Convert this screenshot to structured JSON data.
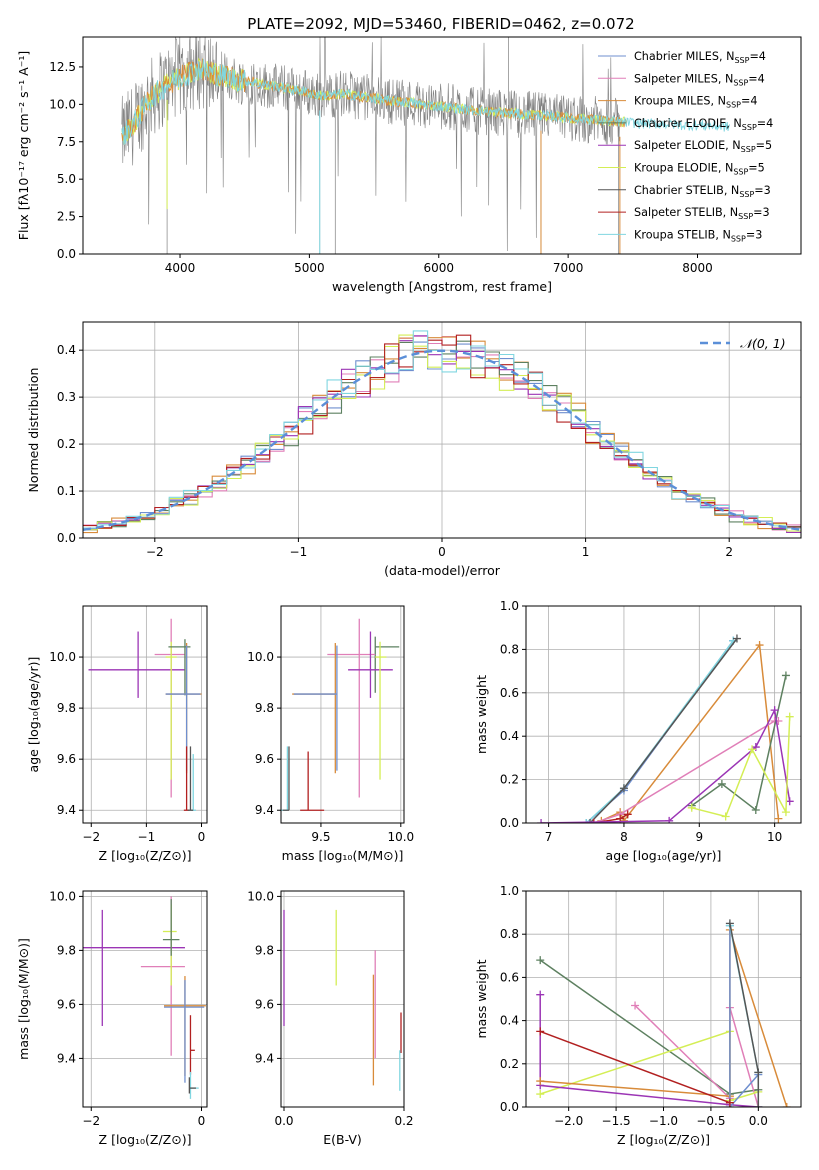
{
  "figure": {
    "title": "PLATE=2092, MJD=53460, FIBERID=0462, z=0.072"
  },
  "colors": {
    "Chabrier MILES": "#6f8fcf",
    "Salpeter MILES": "#e07fb8",
    "Kroupa MILES": "#d88b3a",
    "Chabrier ELODIE": "#5d8060",
    "Salpeter ELODIE": "#9b35b5",
    "Kroupa ELODIE": "#d4ee55",
    "Chabrier STELIB": "#555555",
    "Salpeter STELIB": "#b22020",
    "Kroupa STELIB": "#80d6e0",
    "spectrum": "#808080",
    "normal_curve": "#5b8fd8"
  },
  "chart_data": [
    {
      "id": "spectrum",
      "type": "line",
      "title": "PLATE=2092, MJD=53460, FIBERID=0462, z=0.072",
      "xlabel": "wavelength [Angstrom, rest frame]",
      "ylabel": "Flux [fλ10⁻¹⁷ erg cm⁻² s⁻¹ A⁻¹]",
      "xlim": [
        3250,
        8800
      ],
      "ylim": [
        0,
        14.5
      ],
      "xticks": [
        4000,
        5000,
        6000,
        7000,
        8000
      ],
      "yticks": [
        0.0,
        2.5,
        5.0,
        7.5,
        10.0,
        12.5
      ],
      "grid": false,
      "legend": "top-right",
      "series": [
        {
          "name": "Chabrier MILES, N_SSP=4",
          "label_main": "Chabrier MILES, N",
          "label_sub": "SSP",
          "label_tail": "=4"
        },
        {
          "name": "Salpeter MILES, N_SSP=4",
          "label_main": "Salpeter MILES, N",
          "label_sub": "SSP",
          "label_tail": "=4"
        },
        {
          "name": "Kroupa MILES, N_SSP=4",
          "label_main": "Kroupa MILES, N",
          "label_sub": "SSP",
          "label_tail": "=4"
        },
        {
          "name": "Chabrier ELODIE, N_SSP=4",
          "label_main": "Chabrier ELODIE, N",
          "label_sub": "SSP",
          "label_tail": "=4"
        },
        {
          "name": "Salpeter ELODIE, N_SSP=5",
          "label_main": "Salpeter ELODIE, N",
          "label_sub": "SSP",
          "label_tail": "=5"
        },
        {
          "name": "Kroupa ELODIE, N_SSP=5",
          "label_main": "Kroupa ELODIE, N",
          "label_sub": "SSP",
          "label_tail": "=5"
        },
        {
          "name": "Chabrier STELIB, N_SSP=3",
          "label_main": "Chabrier STELIB, N",
          "label_sub": "SSP",
          "label_tail": "=3"
        },
        {
          "name": "Salpeter STELIB, N_SSP=3",
          "label_main": "Salpeter STELIB, N",
          "label_sub": "SSP",
          "label_tail": "=3"
        },
        {
          "name": "Kroupa STELIB, N_SSP=3",
          "label_main": "Kroupa STELIB, N",
          "label_sub": "SSP",
          "label_tail": "=3"
        }
      ],
      "model_curve": {
        "x": [
          3550,
          3650,
          3750,
          3850,
          3950,
          4050,
          4150,
          4250,
          4350,
          4450,
          4550,
          4650,
          4750,
          4850,
          4950,
          5050,
          5150,
          5250,
          5350,
          5500,
          5650,
          5800,
          5950,
          6100,
          6250,
          6400,
          6550,
          6700,
          6850,
          7000,
          7150,
          7300,
          7450,
          7600,
          7750,
          7900,
          8050,
          8200,
          8350
        ],
        "y": [
          7.8,
          8.8,
          10.2,
          11.0,
          11.6,
          12.0,
          12.4,
          12.1,
          11.9,
          11.6,
          11.5,
          11.3,
          11.2,
          11.0,
          10.9,
          10.6,
          10.6,
          10.7,
          10.6,
          10.4,
          10.2,
          10.1,
          9.9,
          9.8,
          9.6,
          9.5,
          9.4,
          9.3,
          9.2,
          9.1,
          9.0,
          8.9,
          8.8,
          8.7,
          8.7,
          8.6,
          8.6,
          8.5,
          8.5
        ]
      }
    },
    {
      "id": "residuals",
      "type": "histogram",
      "xlabel": "(data-model)/error",
      "ylabel": "Normed distribution",
      "xlim": [
        -2.5,
        2.5
      ],
      "ylim": [
        0,
        0.46
      ],
      "xticks": [
        -2,
        -1,
        0,
        1,
        2
      ],
      "yticks": [
        0.0,
        0.1,
        0.2,
        0.3,
        0.4
      ],
      "grid": true,
      "legend": "top-right",
      "legend_label": "𝒩(0, 1)",
      "bin_edges_range": [
        -2.5,
        2.5
      ],
      "n_bins": 50
    },
    {
      "id": "age_vs_Z",
      "type": "scatter",
      "xlabel": "Z [log₁₀(Z/Z⊙)]",
      "ylabel": "age  [log₁₀(age/yr)]",
      "xlim": [
        -2.15,
        0.1
      ],
      "ylim": [
        9.35,
        10.2
      ],
      "xticks": [
        -2,
        -1,
        0
      ],
      "yticks": [
        9.4,
        9.6,
        9.8,
        10.0
      ],
      "grid": true,
      "points": [
        {
          "model": "Salpeter ELODIE",
          "x": -1.15,
          "y": 9.95,
          "xerr": [
            0.9,
            0.85
          ],
          "yerr": [
            0.11,
            0.15
          ]
        },
        {
          "model": "Salpeter MILES",
          "x": -0.55,
          "y": 10.01,
          "xerr": [
            0.3,
            0.25
          ],
          "yerr": [
            0.56,
            0.14
          ]
        },
        {
          "model": "Kroupa ELODIE",
          "x": -0.55,
          "y": 10.0,
          "xerr": [
            0.1,
            0.1
          ],
          "yerr": [
            0.48,
            0.06
          ]
        },
        {
          "model": "Chabrier ELODIE",
          "x": -0.3,
          "y": 10.04,
          "xerr": [
            0.3,
            0.1
          ],
          "yerr": [
            0.19,
            0.03
          ]
        },
        {
          "model": "Kroupa MILES",
          "x": -0.27,
          "y": 9.855,
          "xerr": [
            0.38,
            0.27
          ],
          "yerr": [
            0.31,
            0.2
          ]
        },
        {
          "model": "Chabrier MILES",
          "x": -0.27,
          "y": 9.855,
          "xerr": [
            0.38,
            0.25
          ],
          "yerr": [
            0.3,
            0.19
          ]
        },
        {
          "model": "Salpeter STELIB",
          "x": -0.27,
          "y": 9.4,
          "xerr": [
            0.05,
            0.05
          ],
          "yerr": [
            0.0,
            0.25
          ]
        },
        {
          "model": "Kroupa STELIB",
          "x": -0.15,
          "y": 9.4,
          "xerr": [
            0.05,
            0.05
          ],
          "yerr": [
            0.0,
            0.22
          ]
        },
        {
          "model": "Chabrier STELIB",
          "x": -0.2,
          "y": 9.4,
          "xerr": [
            0.05,
            0.05
          ],
          "yerr": [
            0.0,
            0.25
          ]
        }
      ]
    },
    {
      "id": "age_vs_mass",
      "type": "scatter",
      "xlabel": "mass [log₁₀(M/M⊙)]",
      "ylabel": "",
      "xlim": [
        9.25,
        10.02
      ],
      "ylim": [
        9.35,
        10.2
      ],
      "xticks": [
        9.5,
        10.0
      ],
      "yticks": [
        9.4,
        9.6,
        9.8,
        10.0
      ],
      "grid": true,
      "points": [
        {
          "model": "Chabrier ELODIE",
          "x": 9.84,
          "y": 10.04,
          "xerr": [
            0.0,
            0.15
          ],
          "yerr": [
            0.18,
            0.04
          ]
        },
        {
          "model": "Salpeter MILES",
          "x": 9.74,
          "y": 10.01,
          "xerr": [
            0.2,
            0.1
          ],
          "yerr": [
            0.56,
            0.14
          ]
        },
        {
          "model": "Salpeter ELODIE",
          "x": 9.81,
          "y": 9.95,
          "xerr": [
            0.14,
            0.14
          ],
          "yerr": [
            0.11,
            0.15
          ]
        },
        {
          "model": "Kroupa ELODIE",
          "x": 9.87,
          "y": 10.0,
          "xerr": [
            0.03,
            0.04
          ],
          "yerr": [
            0.48,
            0.06
          ]
        },
        {
          "model": "Kroupa MILES",
          "x": 9.59,
          "y": 9.855,
          "xerr": [
            0.27,
            0.0
          ],
          "yerr": [
            0.31,
            0.2
          ]
        },
        {
          "model": "Chabrier MILES",
          "x": 9.6,
          "y": 9.855,
          "xerr": [
            0.27,
            0.0
          ],
          "yerr": [
            0.3,
            0.19
          ]
        },
        {
          "model": "Salpeter STELIB",
          "x": 9.42,
          "y": 9.4,
          "xerr": [
            0.05,
            0.1
          ],
          "yerr": [
            0.0,
            0.23
          ]
        },
        {
          "model": "Kroupa STELIB",
          "x": 9.29,
          "y": 9.4,
          "xerr": [
            0.04,
            0.0
          ],
          "yerr": [
            0.0,
            0.25
          ]
        },
        {
          "model": "Chabrier STELIB",
          "x": 9.3,
          "y": 9.4,
          "xerr": [
            0.04,
            0.0
          ],
          "yerr": [
            0.0,
            0.25
          ]
        }
      ]
    },
    {
      "id": "massweight_vs_age",
      "type": "line",
      "xlabel": "age  [log₁₀(age/yr)]",
      "ylabel": "mass weight",
      "xlim": [
        6.7,
        10.35
      ],
      "ylim": [
        0,
        1.0
      ],
      "xticks": [
        7,
        8,
        9,
        10
      ],
      "yticks": [
        0.0,
        0.2,
        0.4,
        0.6,
        0.8,
        1.0
      ],
      "grid": true,
      "series": [
        {
          "model": "Chabrier MILES",
          "x": [
            7.5,
            8.0,
            9.45,
            9.45
          ],
          "y": [
            0.0,
            0.15,
            0.84,
            0.84
          ]
        },
        {
          "model": "Kroupa STELIB",
          "x": [
            7.5,
            8.0,
            9.45
          ],
          "y": [
            0.0,
            0.16,
            0.84
          ]
        },
        {
          "model": "Chabrier STELIB",
          "x": [
            7.55,
            8.0,
            9.5
          ],
          "y": [
            0.0,
            0.16,
            0.85
          ]
        },
        {
          "model": "Kroupa MILES",
          "x": [
            7.7,
            7.95,
            8.0,
            9.8,
            10.05
          ],
          "y": [
            0.01,
            0.05,
            0.01,
            0.82,
            0.02
          ]
        },
        {
          "model": "Salpeter MILES",
          "x": [
            7.6,
            7.95,
            10.0,
            10.05
          ],
          "y": [
            0.0,
            0.04,
            0.47,
            0.47
          ]
        },
        {
          "model": "Salpeter STELIB",
          "x": [
            7.6,
            7.95,
            8.05
          ],
          "y": [
            0.0,
            0.02,
            0.04
          ]
        },
        {
          "model": "Chabrier ELODIE",
          "x": [
            8.9,
            9.3,
            9.75,
            10.15
          ],
          "y": [
            0.08,
            0.18,
            0.06,
            0.68
          ]
        },
        {
          "model": "Salpeter ELODIE",
          "x": [
            6.9,
            8.6,
            9.75,
            10.0,
            10.2
          ],
          "y": [
            0.0,
            0.01,
            0.35,
            0.52,
            0.1
          ]
        },
        {
          "model": "Kroupa ELODIE",
          "x": [
            8.9,
            9.35,
            9.7,
            10.15,
            10.2
          ],
          "y": [
            0.07,
            0.03,
            0.34,
            0.05,
            0.49
          ]
        }
      ]
    },
    {
      "id": "mass_vs_Z",
      "type": "scatter",
      "xlabel": "Z [log₁₀(Z/Z⊙)]",
      "ylabel": "mass [log₁₀(M/M⊙)]",
      "xlim": [
        -2.15,
        0.1
      ],
      "ylim": [
        9.22,
        10.02
      ],
      "xticks": [
        -2,
        0
      ],
      "yticks": [
        9.4,
        9.6,
        9.8,
        10.0
      ],
      "grid": true,
      "points": [
        {
          "model": "Salpeter ELODIE",
          "x": -1.8,
          "y": 9.81,
          "xerr": [
            0.45,
            1.5
          ],
          "yerr": [
            0.29,
            0.14
          ]
        },
        {
          "model": "Salpeter MILES",
          "x": -0.55,
          "y": 9.74,
          "xerr": [
            0.55,
            0.25
          ],
          "yerr": [
            0.33,
            0.26
          ]
        },
        {
          "model": "Kroupa ELODIE",
          "x": -0.55,
          "y": 9.87,
          "xerr": [
            0.15,
            0.1
          ],
          "yerr": [
            0.2,
            0.1
          ]
        },
        {
          "model": "Chabrier ELODIE",
          "x": -0.55,
          "y": 9.84,
          "xerr": [
            0.15,
            0.15
          ],
          "yerr": [
            0.06,
            0.15
          ]
        },
        {
          "model": "Kroupa MILES",
          "x": -0.3,
          "y": 9.595,
          "xerr": [
            0.38,
            0.38
          ],
          "yerr": [
            0.26,
            0.11
          ]
        },
        {
          "model": "Chabrier MILES",
          "x": -0.3,
          "y": 9.59,
          "xerr": [
            0.38,
            0.35
          ],
          "yerr": [
            0.28,
            0.1
          ]
        },
        {
          "model": "Salpeter STELIB",
          "x": -0.2,
          "y": 9.43,
          "xerr": [
            0.0,
            0.08
          ],
          "yerr": [
            0.09,
            0.13
          ]
        },
        {
          "model": "Kroupa STELIB",
          "x": -0.2,
          "y": 9.29,
          "xerr": [
            0.0,
            0.15
          ],
          "yerr": [
            0.04,
            0.06
          ]
        },
        {
          "model": "Chabrier STELIB",
          "x": -0.22,
          "y": 9.29,
          "xerr": [
            0.0,
            0.12
          ],
          "yerr": [
            0.02,
            0.04
          ]
        }
      ]
    },
    {
      "id": "mass_vs_EBV",
      "type": "scatter",
      "xlabel": "E(B-V)",
      "ylabel": "",
      "xlim": [
        -0.005,
        0.2
      ],
      "ylim": [
        9.22,
        10.02
      ],
      "xticks": [
        0.0,
        0.2
      ],
      "yticks": [
        9.4,
        9.6,
        9.8,
        10.0
      ],
      "grid": true,
      "points": [
        {
          "model": "Salpeter ELODIE",
          "x": 0.0,
          "y": 9.8,
          "xerr": [
            0.0,
            0.0
          ],
          "yerr": [
            0.28,
            0.15
          ]
        },
        {
          "model": "Kroupa ELODIE",
          "x": 0.087,
          "y": 9.85,
          "xerr": [
            0.0,
            0.0
          ],
          "yerr": [
            0.18,
            0.1
          ]
        },
        {
          "model": "Salpeter MILES",
          "x": 0.152,
          "y": 9.6,
          "xerr": [
            0.0,
            0.0
          ],
          "yerr": [
            0.2,
            0.2
          ]
        },
        {
          "model": "Kroupa MILES",
          "x": 0.149,
          "y": 9.55,
          "xerr": [
            0.0,
            0.0
          ],
          "yerr": [
            0.25,
            0.16
          ]
        },
        {
          "model": "Salpeter STELIB",
          "x": 0.195,
          "y": 9.47,
          "xerr": [
            0.0,
            0.0
          ],
          "yerr": [
            0.05,
            0.1
          ]
        },
        {
          "model": "Kroupa STELIB",
          "x": 0.193,
          "y": 9.33,
          "xerr": [
            0.0,
            0.0
          ],
          "yerr": [
            0.05,
            0.1
          ]
        }
      ]
    },
    {
      "id": "massweight_vs_Z",
      "type": "line",
      "xlabel": "Z [log₁₀(Z/Z⊙)]",
      "ylabel": "mass weight",
      "xlim": [
        -2.45,
        0.45
      ],
      "ylim": [
        0,
        1.0
      ],
      "xticks": [
        -2.0,
        -1.5,
        -1.0,
        -0.5,
        0.0
      ],
      "yticks": [
        0.0,
        0.2,
        0.4,
        0.6,
        0.8,
        1.0
      ],
      "grid": true,
      "series": [
        {
          "model": "Chabrier ELODIE",
          "x": [
            -2.3,
            -0.3,
            0.0
          ],
          "y": [
            0.68,
            0.06,
            0.08
          ]
        },
        {
          "model": "Salpeter MILES",
          "x": [
            -1.3,
            -0.3,
            -0.3,
            0.0
          ],
          "y": [
            0.47,
            0.04,
            0.46,
            0.0
          ]
        },
        {
          "model": "Kroupa ELODIE",
          "x": [
            -2.3,
            -0.3,
            -0.3,
            0.0
          ],
          "y": [
            0.06,
            0.35,
            0.03,
            0.07
          ]
        },
        {
          "model": "Salpeter ELODIE",
          "x": [
            -2.3,
            -2.3,
            -0.3,
            0.0
          ],
          "y": [
            0.52,
            0.1,
            0.01,
            0.0
          ]
        },
        {
          "model": "Kroupa MILES",
          "x": [
            -2.3,
            -0.3,
            -0.3,
            0.3
          ],
          "y": [
            0.12,
            0.05,
            0.82,
            0.0
          ]
        },
        {
          "model": "Chabrier MILES",
          "x": [
            -0.3,
            -0.3,
            0.0
          ],
          "y": [
            0.84,
            0.0,
            0.15
          ]
        },
        {
          "model": "Kroupa STELIB",
          "x": [
            -0.3,
            0.0,
            0.0
          ],
          "y": [
            0.84,
            0.16,
            0.0
          ]
        },
        {
          "model": "Chabrier STELIB",
          "x": [
            -0.3,
            0.0,
            0.0
          ],
          "y": [
            0.85,
            0.16,
            0.0
          ]
        },
        {
          "model": "Salpeter STELIB",
          "x": [
            -2.3,
            -0.3
          ],
          "y": [
            0.35,
            0.02
          ]
        }
      ]
    }
  ]
}
